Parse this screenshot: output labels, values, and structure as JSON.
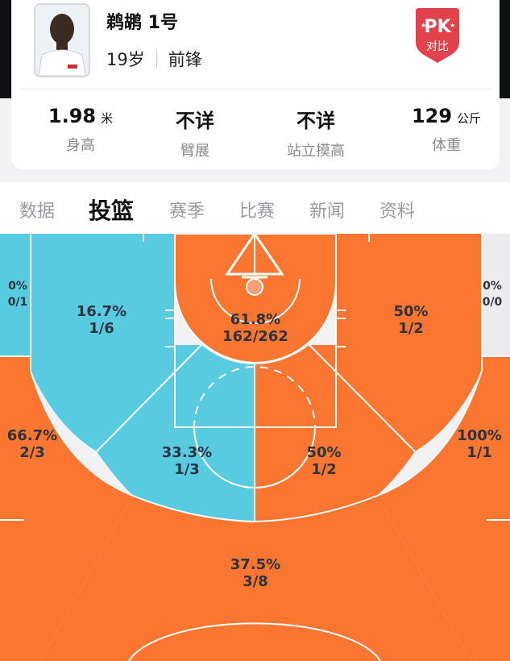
{
  "player": {
    "name": "鹈鹕 1号",
    "age": "19岁",
    "position": "前锋"
  },
  "pk_badge": {
    "top": "PK",
    "bottom": "对比",
    "color": "#e2424b"
  },
  "stats": [
    {
      "value": "1.98",
      "unit": "米",
      "label": "身高"
    },
    {
      "value": "不详",
      "unit": "",
      "label": "臂展"
    },
    {
      "value": "不详",
      "unit": "",
      "label": "站立摸高"
    },
    {
      "value": "129",
      "unit": "公斤",
      "label": "体重"
    }
  ],
  "tabs": [
    "数据",
    "投篮",
    "赛季",
    "比赛",
    "新闻",
    "资料"
  ],
  "active_tab": "投篮",
  "colors": {
    "hot": "#fb7631",
    "cold": "#59cbe0",
    "neutral": "#ececef"
  },
  "zones": {
    "left_corner3": {
      "pct": "0%",
      "made": "0/1"
    },
    "left_mid": {
      "pct": "16.7%",
      "made": "1/6"
    },
    "paint": {
      "pct": "61.8%",
      "made": "162/262"
    },
    "right_mid": {
      "pct": "50%",
      "made": "1/2"
    },
    "right_corner3": {
      "pct": "0%",
      "made": "0/0"
    },
    "left_wing3": {
      "pct": "66.7%",
      "made": "2/3"
    },
    "left_elbow": {
      "pct": "33.3%",
      "made": "1/3"
    },
    "right_elbow": {
      "pct": "50%",
      "made": "1/2"
    },
    "right_wing3": {
      "pct": "100%",
      "made": "1/1"
    },
    "top3": {
      "pct": "37.5%",
      "made": "3/8"
    }
  }
}
